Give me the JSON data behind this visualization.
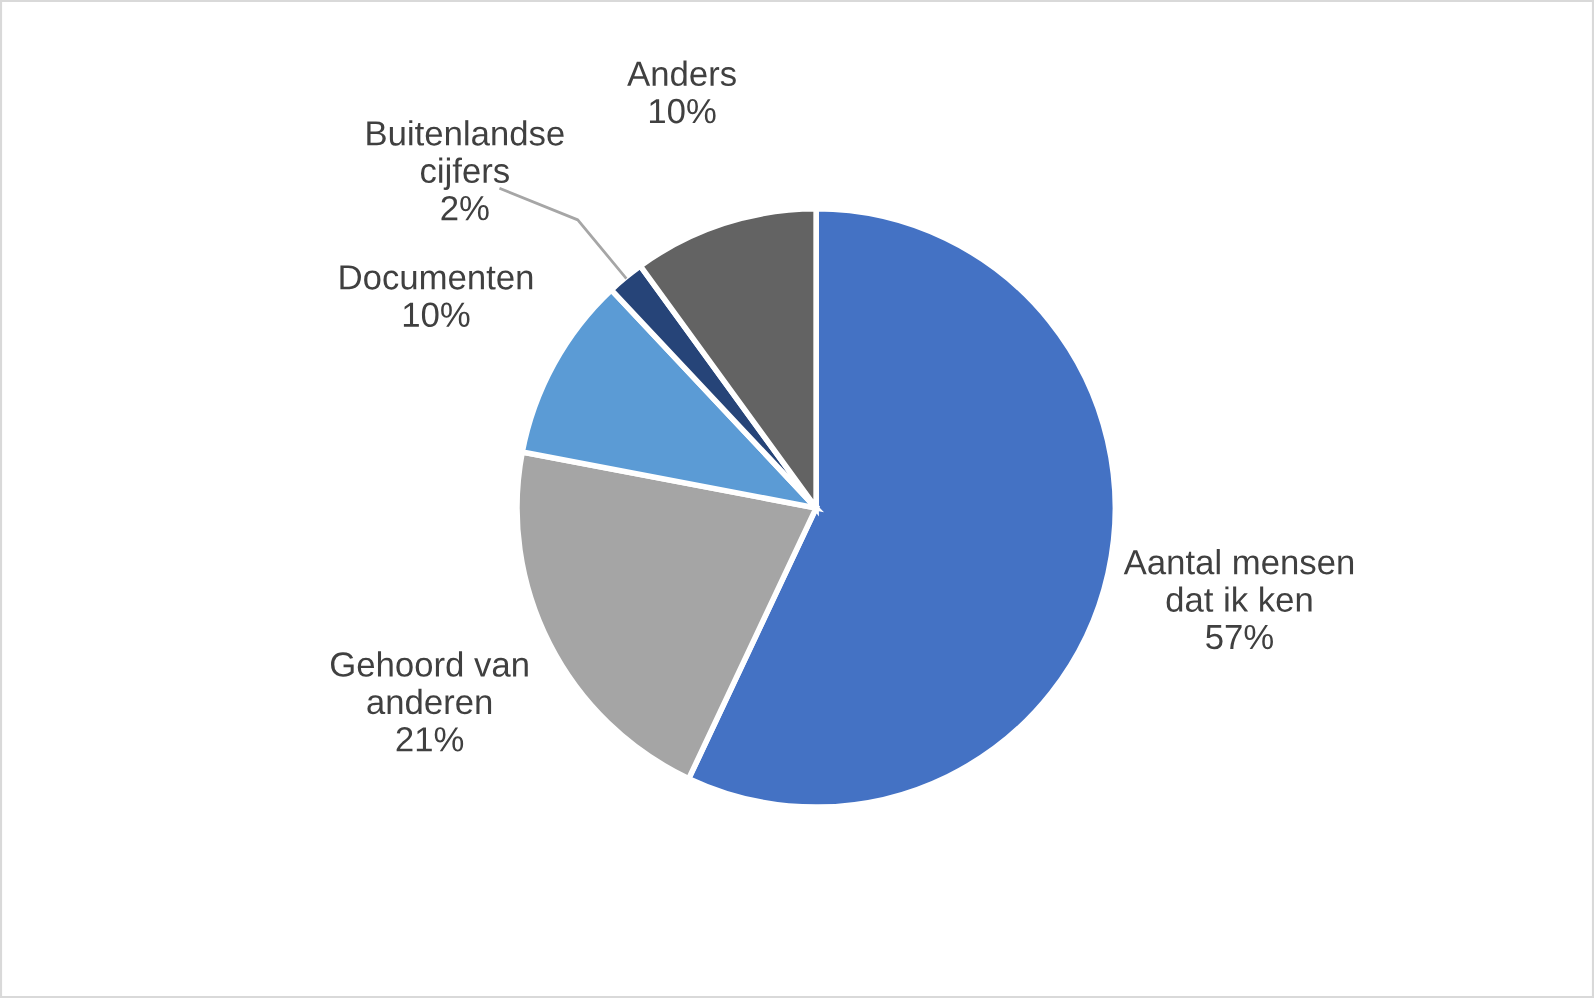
{
  "chart_data": {
    "type": "pie",
    "categories": [
      "Aantal mensen dat ik ken",
      "Gehoord van anderen",
      "Documenten",
      "Buitenlandse cijfers",
      "Anders"
    ],
    "values": [
      57,
      21,
      10,
      2,
      10
    ],
    "value_labels": [
      "57%",
      "21%",
      "10%",
      "2%",
      "10%"
    ],
    "colors": [
      "#4472c4",
      "#a5a5a5",
      "#5b9bd5",
      "#264478",
      "#636363"
    ],
    "legend": false
  }
}
